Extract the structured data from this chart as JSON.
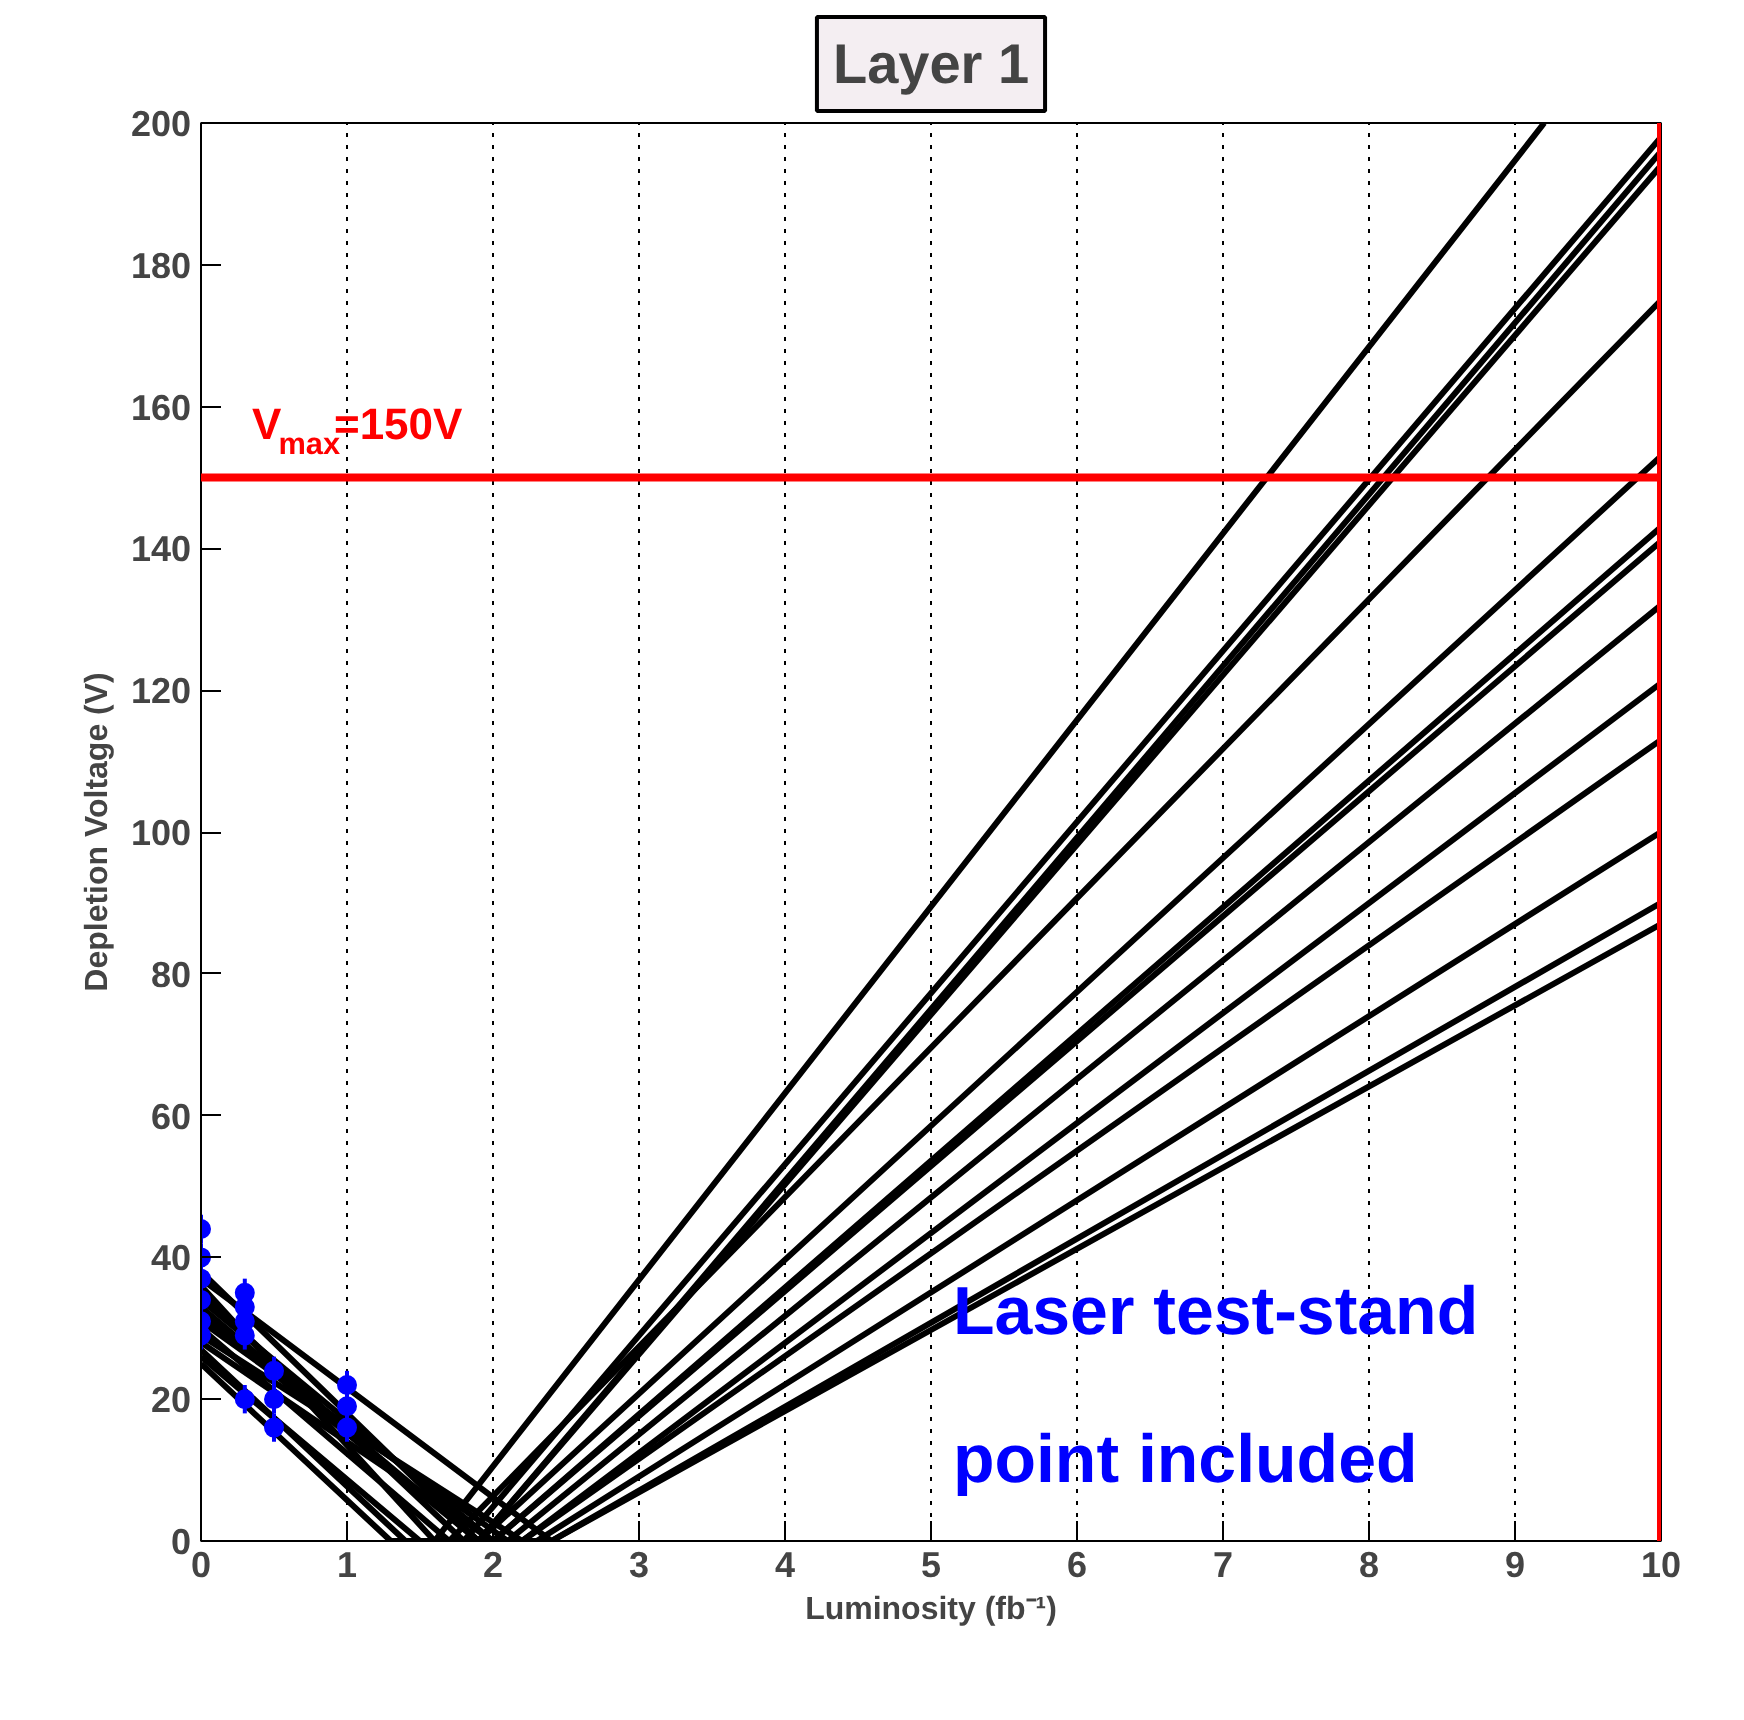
{
  "chart_data": {
    "type": "line",
    "title": "Layer 1",
    "xlabel": "Luminosity (fb⁻¹)",
    "ylabel": "Depletion Voltage (V)",
    "xlim": [
      0,
      10
    ],
    "ylim": [
      0,
      200
    ],
    "xticks": [
      0,
      1,
      2,
      3,
      4,
      5,
      6,
      7,
      8,
      9,
      10
    ],
    "yticks": [
      0,
      20,
      40,
      60,
      80,
      100,
      120,
      140,
      160,
      180,
      200
    ],
    "grid": "x",
    "line_style": "solid",
    "series": [
      {
        "type": "line",
        "color": "#000000",
        "x": [
          0,
          1.6,
          9.2
        ],
        "values": [
          36,
          0,
          200
        ]
      },
      {
        "type": "line",
        "color": "#000000",
        "x": [
          0,
          1.8,
          10
        ],
        "values": [
          35,
          0,
          198
        ]
      },
      {
        "type": "line",
        "color": "#000000",
        "x": [
          0,
          1.9,
          10
        ],
        "values": [
          33,
          0,
          196
        ]
      },
      {
        "type": "line",
        "color": "#000000",
        "x": [
          0,
          1.9,
          10
        ],
        "values": [
          32,
          0,
          194
        ]
      },
      {
        "type": "line",
        "color": "#000000",
        "x": [
          0,
          1.7,
          10
        ],
        "values": [
          30,
          0,
          175
        ]
      },
      {
        "type": "line",
        "color": "#000000",
        "x": [
          0,
          1.9,
          10
        ],
        "values": [
          38,
          0,
          153
        ]
      },
      {
        "type": "line",
        "color": "#000000",
        "x": [
          0,
          2.0,
          10
        ],
        "values": [
          34,
          0,
          143
        ]
      },
      {
        "type": "line",
        "color": "#000000",
        "x": [
          0,
          2.0,
          10
        ],
        "values": [
          28,
          0,
          141
        ]
      },
      {
        "type": "line",
        "color": "#000000",
        "x": [
          0,
          2.1,
          10
        ],
        "values": [
          31,
          0,
          132
        ]
      },
      {
        "type": "line",
        "color": "#000000",
        "x": [
          0,
          1.4,
          2.2,
          10
        ],
        "values": [
          27,
          0,
          0,
          121
        ]
      },
      {
        "type": "line",
        "color": "#000000",
        "x": [
          0,
          2.2,
          10
        ],
        "values": [
          29,
          0,
          113
        ]
      },
      {
        "type": "line",
        "color": "#000000",
        "x": [
          0,
          1.3,
          2.3,
          10
        ],
        "values": [
          25,
          0,
          0,
          100
        ]
      },
      {
        "type": "line",
        "color": "#000000",
        "x": [
          0,
          2.4,
          10
        ],
        "values": [
          37,
          0,
          90
        ]
      },
      {
        "type": "line",
        "color": "#000000",
        "x": [
          0,
          1.5,
          2.4,
          10
        ],
        "values": [
          26,
          0,
          0,
          87
        ]
      },
      {
        "type": "scatter",
        "color": "#0000ff",
        "marker": "circle",
        "x": [
          0,
          0,
          0,
          0,
          0,
          0,
          0.3,
          0.3,
          0.3,
          0.3,
          0.3,
          0.5,
          0.5,
          0.5,
          1.0,
          1.0,
          1.0
        ],
        "values": [
          44,
          40,
          37,
          34,
          31,
          29,
          35,
          33,
          31,
          29,
          20,
          24,
          20,
          16,
          22,
          19,
          16
        ],
        "errors": [
          2,
          2,
          2,
          2,
          2,
          2,
          2,
          2,
          2,
          2,
          2,
          2,
          2,
          2,
          2,
          2,
          2
        ]
      }
    ],
    "ref_lines": [
      {
        "axis": "y",
        "value": 150,
        "label": "V$_{max}$=150V",
        "color": "#ff0000",
        "line_style": "solid"
      },
      {
        "axis": "x",
        "value": 10,
        "label": null,
        "color": "#ff0000",
        "line_style": "solid"
      }
    ],
    "annotations": [
      "Laser test-stand point included"
    ]
  }
}
